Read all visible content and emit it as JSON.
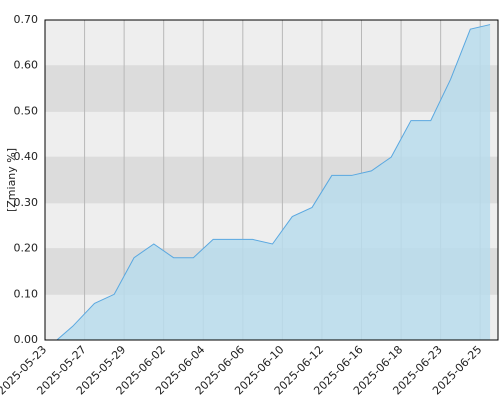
{
  "chart_data": {
    "type": "area",
    "y_label": "[Zmiany %]",
    "x": [
      0.6,
      1.4,
      2.5,
      3.5,
      4.5,
      5.5,
      6.5,
      7.5,
      8.5,
      9.5,
      10.5,
      11.5,
      12.5,
      13.5,
      14.5,
      15.5,
      16.5,
      17.5,
      18.5,
      19.5,
      20.5,
      21.5,
      22.5
    ],
    "series": [
      {
        "color": "#b8dcec",
        "line_color": "#5aa8e0",
        "values": [
          0,
          0.03,
          0.08,
          0.1,
          0.18,
          0.21,
          0.18,
          0.18,
          0.22,
          0.22,
          0.22,
          0.21,
          0.27,
          0.29,
          0.36,
          0.36,
          0.37,
          0.4,
          0.48,
          0.48,
          0.57,
          0.68,
          0.69
        ]
      }
    ],
    "xlim": [
      0,
      22.9
    ],
    "xticks": [
      {
        "value": 0,
        "label": "2025-05-23"
      },
      {
        "value": 2,
        "label": "2025-05-27"
      },
      {
        "value": 4,
        "label": "2025-05-29"
      },
      {
        "value": 6,
        "label": "2025-06-02"
      },
      {
        "value": 8,
        "label": "2025-06-04"
      },
      {
        "value": 10,
        "label": "2025-06-06"
      },
      {
        "value": 12,
        "label": "2025-06-10"
      },
      {
        "value": 14,
        "label": "2025-06-12"
      },
      {
        "value": 16,
        "label": "2025-06-16"
      },
      {
        "value": 18,
        "label": "2025-06-18"
      },
      {
        "value": 20,
        "label": "2025-06-23"
      },
      {
        "value": 22,
        "label": "2025-06-25"
      }
    ],
    "ylim": [
      0,
      0.7
    ],
    "yticks": [
      {
        "value": 0,
        "label": "0.00"
      },
      {
        "value": 0.1,
        "label": "0.10"
      },
      {
        "value": 0.2,
        "label": "0.20"
      },
      {
        "value": 0.3,
        "label": "0.30"
      },
      {
        "value": 0.4,
        "label": "0.40"
      },
      {
        "value": 0.5,
        "label": "0.50"
      },
      {
        "value": 0.6,
        "label": "0.60"
      },
      {
        "value": 0.7,
        "label": "0.70"
      }
    ],
    "grid": true
  }
}
